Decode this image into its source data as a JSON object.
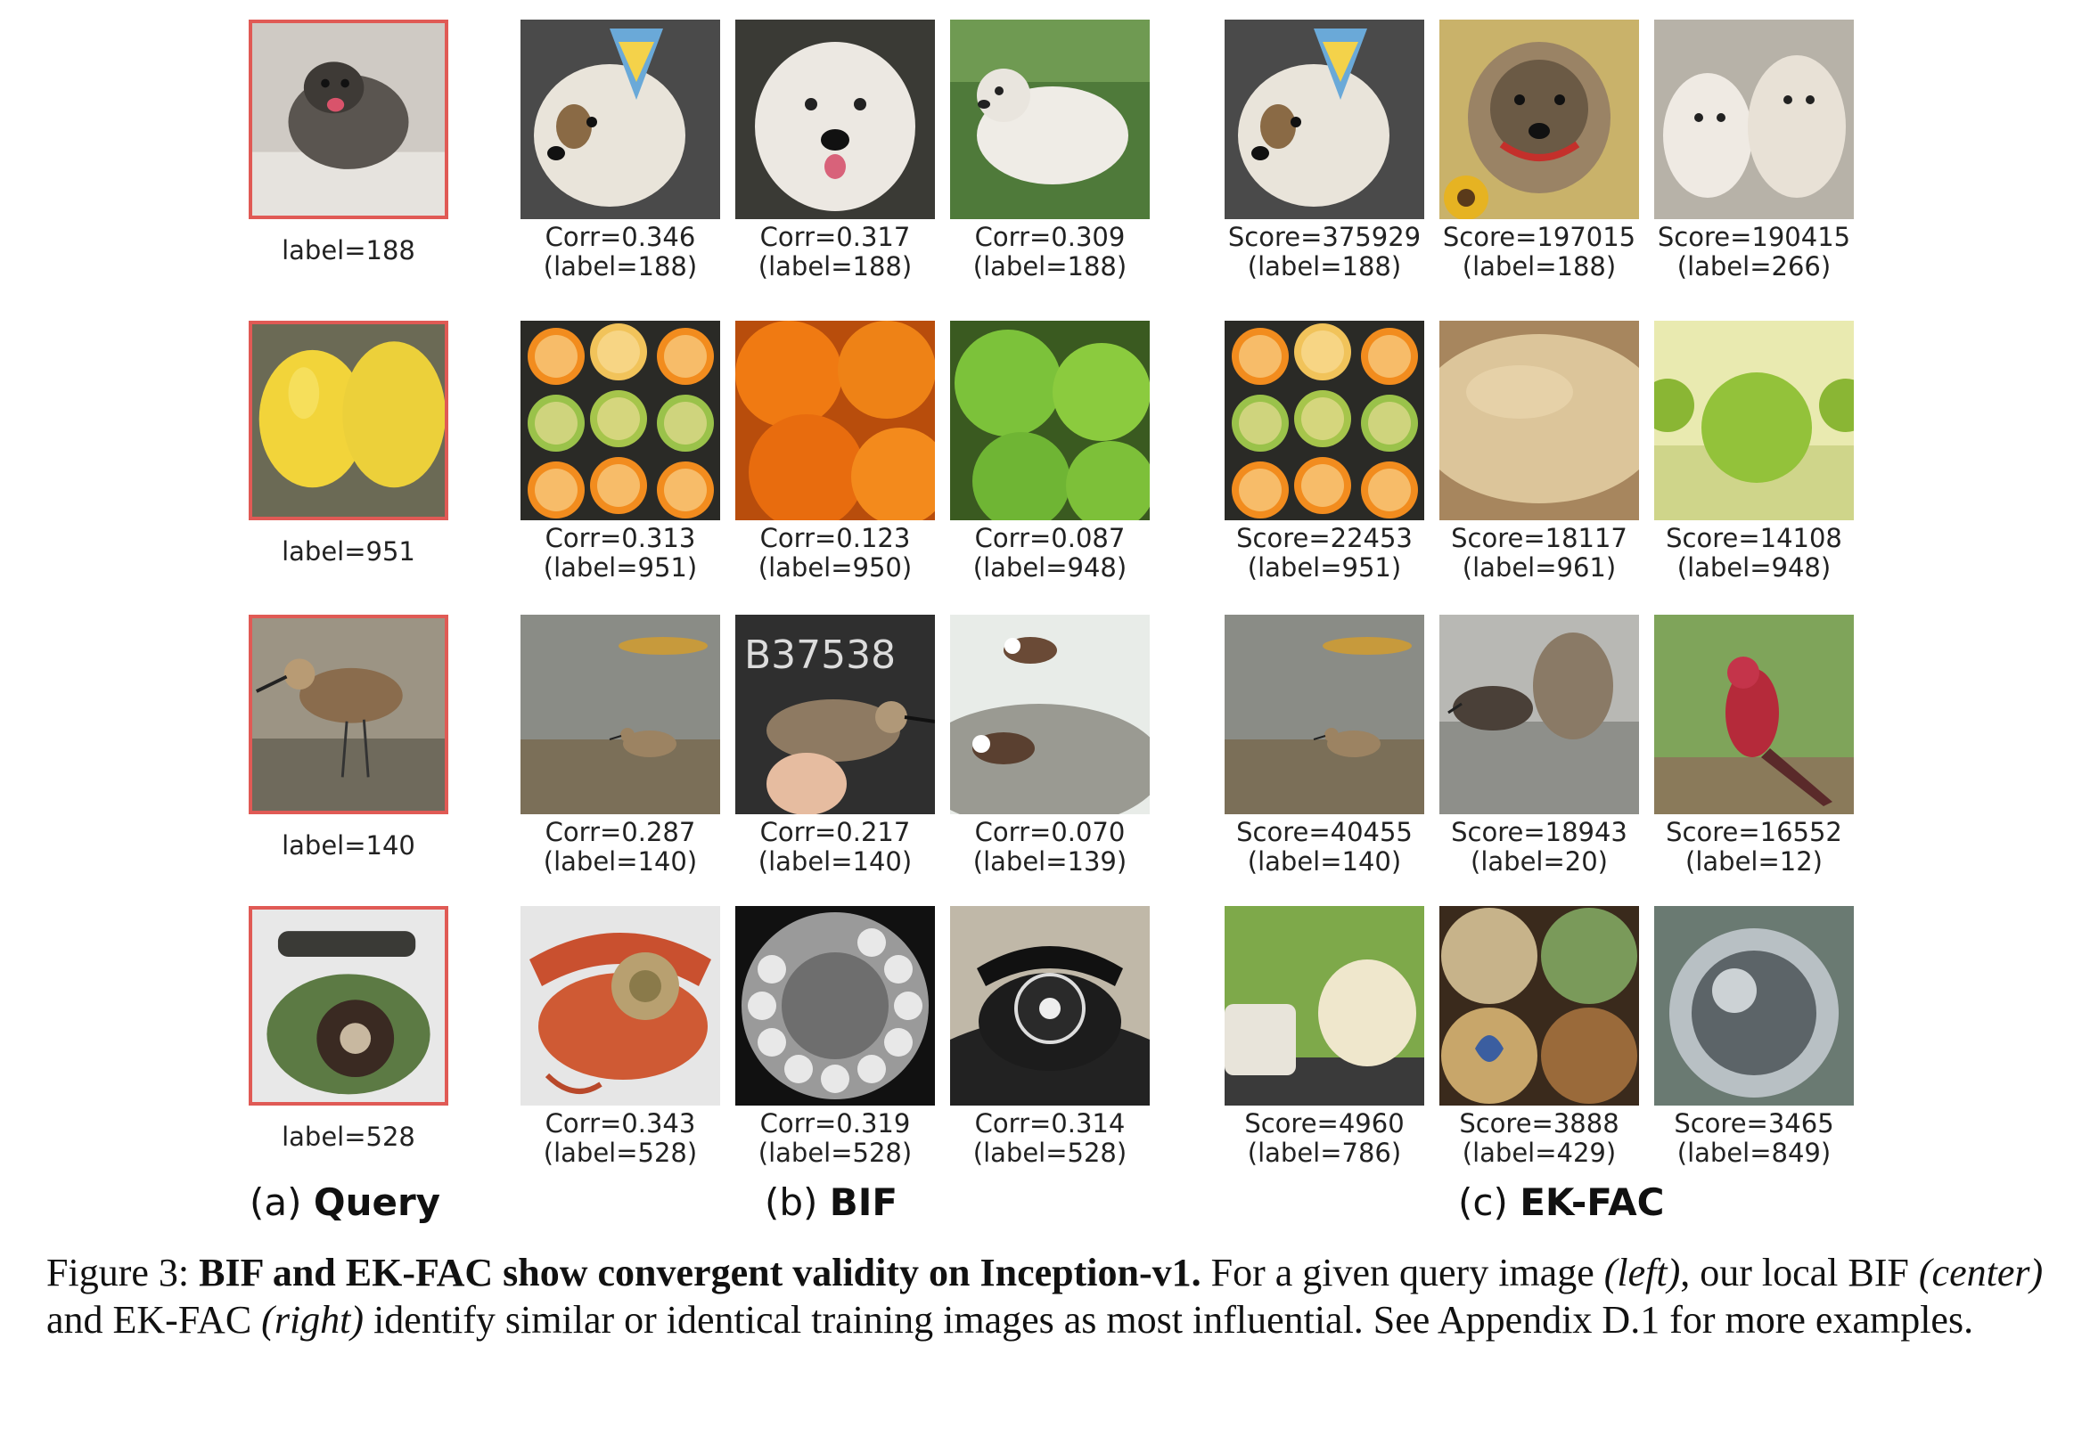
{
  "panels": {
    "query": {
      "prefix": "(a)",
      "name": "Query"
    },
    "bif": {
      "prefix": "(b)",
      "name": "BIF"
    },
    "ekfac": {
      "prefix": "(c)",
      "name": "EK-FAC"
    }
  },
  "rows": [
    {
      "query_label": "label=188",
      "query_icon": "terrier-dog-icon",
      "bif": [
        {
          "line1": "Corr=0.346",
          "line2": "(label=188)",
          "icon": "terrier-party-hat-icon"
        },
        {
          "line1": "Corr=0.317",
          "line2": "(label=188)",
          "icon": "white-terrier-face-icon"
        },
        {
          "line1": "Corr=0.309",
          "line2": "(label=188)",
          "icon": "terrier-on-grass-icon"
        }
      ],
      "ekfac": [
        {
          "line1": "Score=375929",
          "line2": "(label=188)",
          "icon": "terrier-party-hat-icon"
        },
        {
          "line1": "Score=197015",
          "line2": "(label=188)",
          "icon": "terrier-sunflowers-icon"
        },
        {
          "line1": "Score=190415",
          "line2": "(label=266)",
          "icon": "two-poodles-icon"
        }
      ]
    },
    {
      "query_label": "label=951",
      "query_icon": "lemons-icon",
      "bif": [
        {
          "line1": "Corr=0.313",
          "line2": "(label=951)",
          "icon": "sliced-citrus-icon"
        },
        {
          "line1": "Corr=0.123",
          "line2": "(label=950)",
          "icon": "oranges-icon"
        },
        {
          "line1": "Corr=0.087",
          "line2": "(label=948)",
          "icon": "green-apples-icon"
        }
      ],
      "ekfac": [
        {
          "line1": "Score=22453",
          "line2": "(label=951)",
          "icon": "sliced-citrus-icon"
        },
        {
          "line1": "Score=18117",
          "line2": "(label=961)",
          "icon": "dough-icon"
        },
        {
          "line1": "Score=14108",
          "line2": "(label=948)",
          "icon": "green-apple-icon"
        }
      ]
    },
    {
      "query_label": "label=140",
      "query_icon": "sandpiper-icon",
      "bif": [
        {
          "line1": "Corr=0.287",
          "line2": "(label=140)",
          "icon": "sandpiper-water-icon"
        },
        {
          "line1": "Corr=0.217",
          "line2": "(label=140)",
          "icon": "sandpiper-in-hand-icon"
        },
        {
          "line1": "Corr=0.070",
          "line2": "(label=139)",
          "icon": "turnstones-on-rock-icon"
        }
      ],
      "ekfac": [
        {
          "line1": "Score=40455",
          "line2": "(label=140)",
          "icon": "sandpiper-water-icon"
        },
        {
          "line1": "Score=18943",
          "line2": "(label=20)",
          "icon": "dipper-bird-icon"
        },
        {
          "line1": "Score=16552",
          "line2": "(label=12)",
          "icon": "red-bird-icon"
        }
      ]
    },
    {
      "query_label": "label=528",
      "query_icon": "green-rotary-phone-icon",
      "bif": [
        {
          "line1": "Corr=0.343",
          "line2": "(label=528)",
          "icon": "red-rotary-phone-icon"
        },
        {
          "line1": "Corr=0.319",
          "line2": "(label=528)",
          "icon": "rotary-dial-closeup-icon"
        },
        {
          "line1": "Corr=0.314",
          "line2": "(label=528)",
          "icon": "black-rotary-phone-icon"
        }
      ],
      "ekfac": [
        {
          "line1": "Score=4960",
          "line2": "(label=786)",
          "icon": "sewing-machine-icon"
        },
        {
          "line1": "Score=3888",
          "line2": "(label=429)",
          "icon": "painted-baseballs-icon"
        },
        {
          "line1": "Score=3465",
          "line2": "(label=849)",
          "icon": "chrome-kettle-icon"
        }
      ]
    }
  ],
  "caption": {
    "figure_num": "Figure 3:",
    "bold": "BIF and EK-FAC show convergent validity on Inception-v1.",
    "t1": "For a given query image",
    "i1": "(left)",
    "t2": ", our local BIF",
    "i2": "(center)",
    "t3": "and EK-FAC",
    "i3": "(right)",
    "t4": "identify similar or identical training images as most influential. See Appendix D.1 for more examples."
  },
  "colors": {
    "query_border": "#e05a55"
  }
}
